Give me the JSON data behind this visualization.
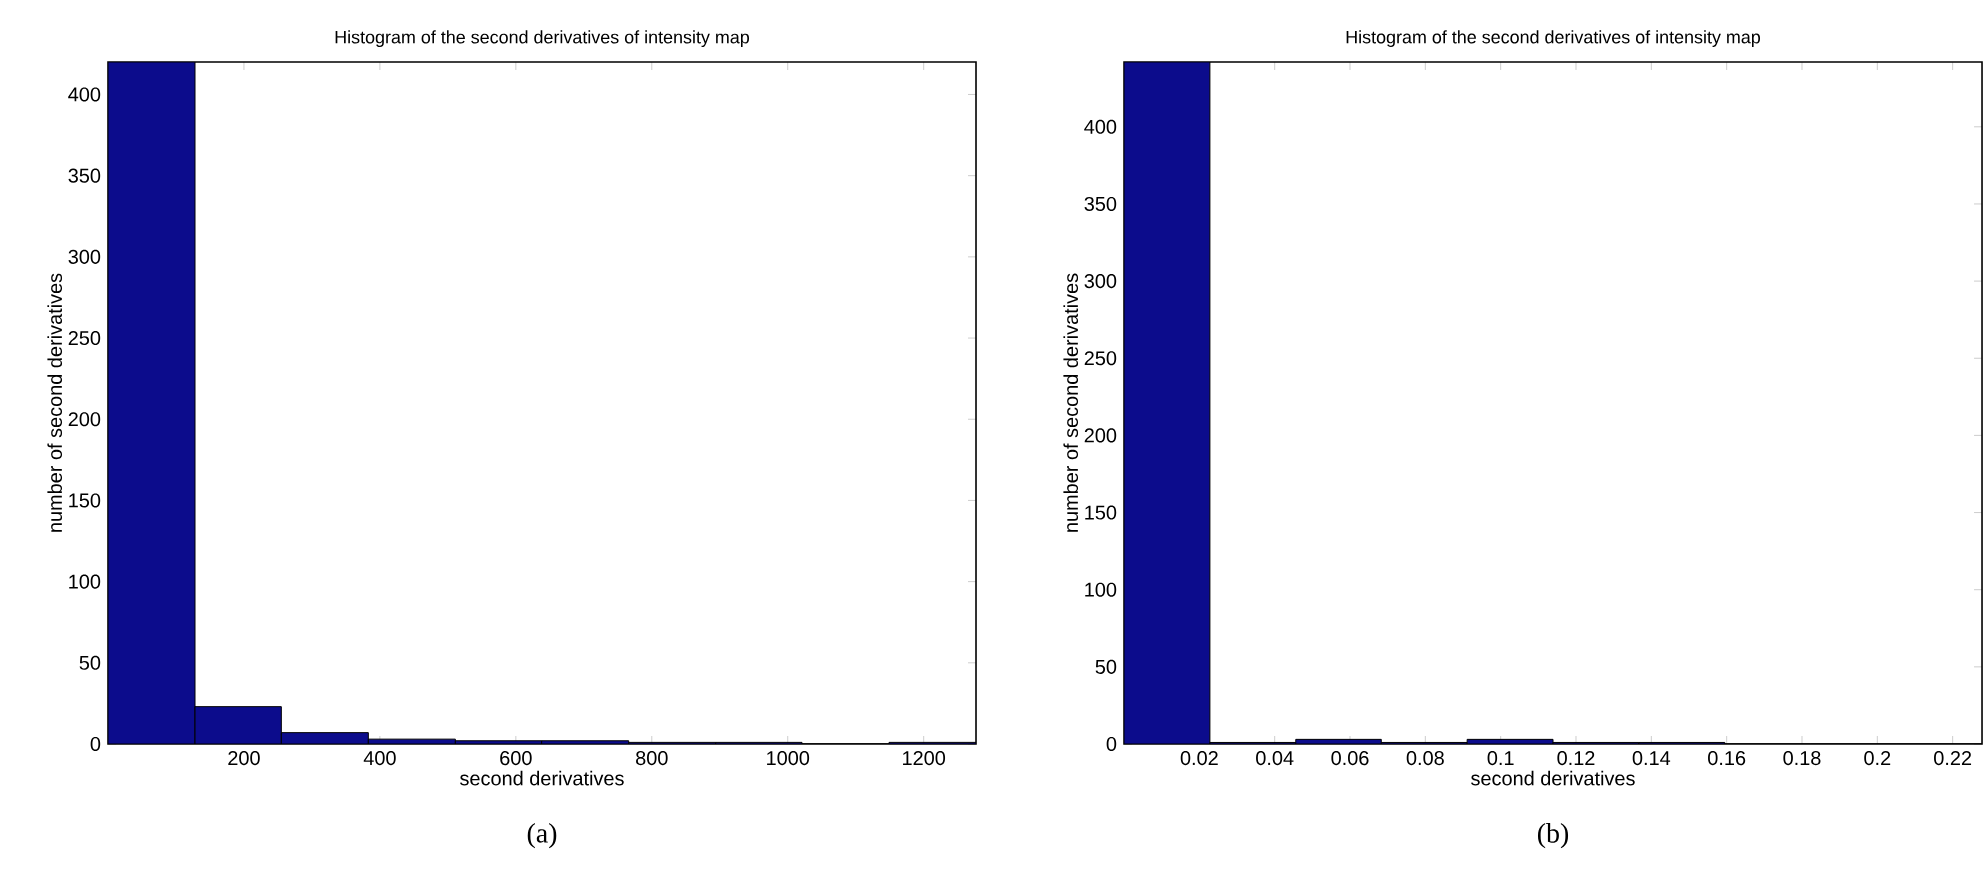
{
  "chart_data": [
    {
      "type": "histogram",
      "title": "Histogram of the second derivatives of intensity map",
      "xlabel": "second derivatives",
      "ylabel": "number of second derivatives",
      "annotations": [
        "(a)"
      ],
      "color": "#0c0c8c",
      "bins": [
        0,
        128,
        255,
        383,
        511,
        638,
        766,
        894,
        1021,
        1149,
        1277
      ],
      "values": [
        420,
        23,
        7,
        3,
        2,
        2,
        1,
        1,
        0,
        1
      ],
      "xlim": [
        0,
        1277
      ],
      "ylim": [
        0,
        420
      ],
      "xticks": [
        200,
        400,
        600,
        800,
        1000,
        1200
      ],
      "yticks": [
        0,
        50,
        100,
        150,
        200,
        250,
        300,
        350,
        400
      ]
    },
    {
      "type": "histogram",
      "title": "Histogram of the second derivatives of intensity map",
      "xlabel": "second derivatives",
      "ylabel": "number of second derivatives",
      "annotations": [
        "(b)"
      ],
      "color": "#0c0c8c",
      "bins": [
        0,
        0.0228,
        0.0456,
        0.0683,
        0.0911,
        0.1139,
        0.1367,
        0.1595,
        0.1822,
        0.205,
        0.2278
      ],
      "values": [
        442,
        1,
        3,
        1,
        3,
        1,
        1,
        0,
        0,
        0
      ],
      "xlim": [
        0,
        0.2278
      ],
      "ylim": [
        0,
        442
      ],
      "xticks": [
        0.02,
        0.04,
        0.06,
        0.08,
        0.1,
        0.12,
        0.14,
        0.16,
        0.18,
        0.2,
        0.22
      ],
      "yticks": [
        0,
        50,
        100,
        150,
        200,
        250,
        300,
        350,
        400
      ]
    }
  ]
}
